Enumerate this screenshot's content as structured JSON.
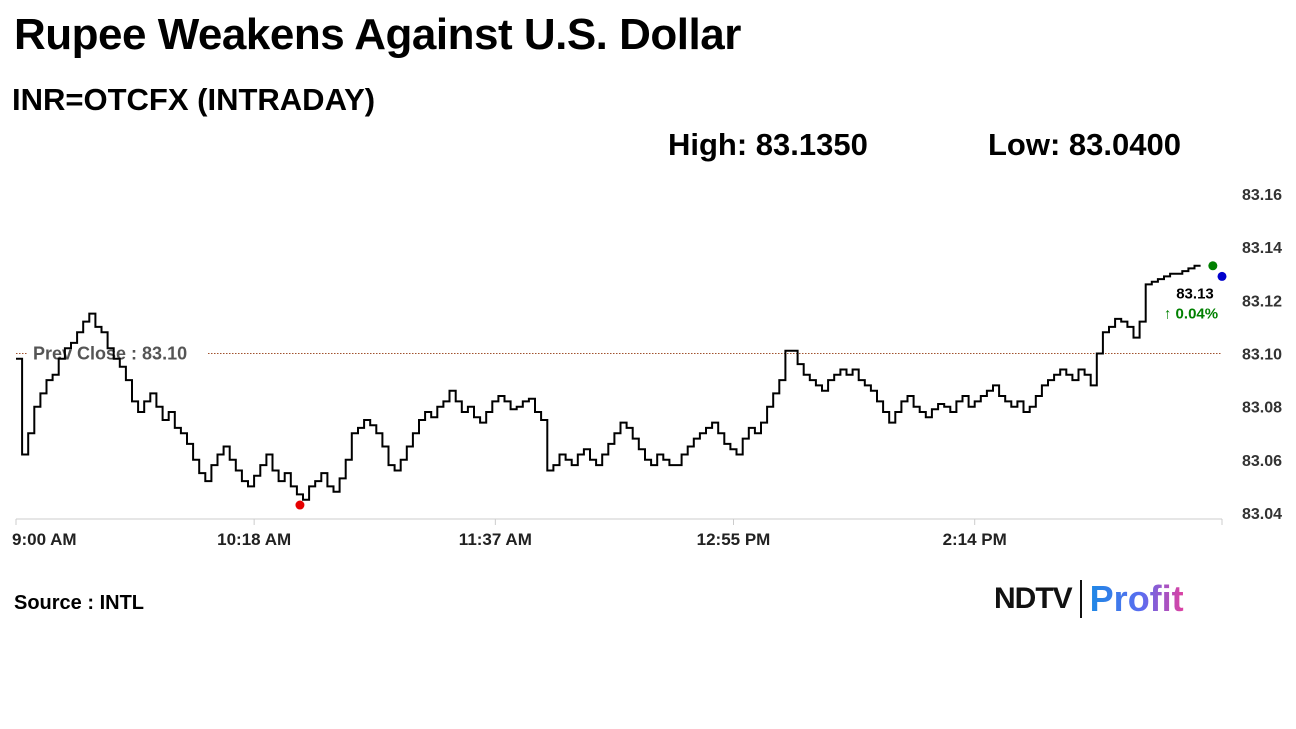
{
  "header": {
    "title": "Rupee Weakens Against U.S. Dollar",
    "subtitle": "INR=OTCFX (INTRADAY)",
    "high": "High: 83.1350",
    "low": "Low: 83.0400"
  },
  "footer": {
    "source": "Source : INTL",
    "logo_left": "NDTV",
    "logo_right": "Profit"
  },
  "colors": {
    "line": "#000000",
    "axis": "#cccccc",
    "prev_close_line": "#a0522d",
    "low_marker": "#e60000",
    "high_marker": "#008000",
    "last_marker": "#0000cc",
    "change_positive": "#008000"
  },
  "chart_data": {
    "type": "line",
    "ylim": [
      83.04,
      83.16
    ],
    "yticks": [
      "83.16",
      "83.14",
      "83.12",
      "83.10",
      "83.08",
      "83.06",
      "83.04"
    ],
    "ytick_values": [
      83.16,
      83.14,
      83.12,
      83.1,
      83.08,
      83.06,
      83.04
    ],
    "x_tick_labels": [
      "9:00 AM",
      "10:18 AM",
      "11:37 AM",
      "12:55 PM",
      "2:14 PM"
    ],
    "x_tick_minutes": [
      0,
      78,
      157,
      235,
      314
    ],
    "x_range_minutes": [
      0,
      395
    ],
    "prev_close": {
      "label": "Prev Close : 83.10",
      "value": 83.1
    },
    "last": {
      "price": "83.13",
      "change": "↑ 0.04%"
    },
    "markers": {
      "low": {
        "minute": 93,
        "value": 83.043
      },
      "high": {
        "minute": 392,
        "value": 83.133
      },
      "last": {
        "minute": 395,
        "value": 83.129
      }
    },
    "series": [
      {
        "minutes": [
          0,
          2,
          4,
          6,
          8,
          10,
          12,
          14,
          16,
          18,
          20,
          22,
          24,
          26,
          28,
          30,
          32,
          34,
          36,
          38,
          40,
          42,
          44,
          46,
          48,
          50,
          52,
          54,
          56,
          58,
          60,
          62,
          64,
          66,
          68,
          70,
          72,
          74,
          76,
          78,
          80,
          82,
          84,
          86,
          88,
          90,
          92,
          94,
          96,
          98,
          100,
          102,
          104,
          106,
          108,
          110,
          112,
          114,
          116,
          118,
          120,
          122,
          124,
          126,
          128,
          130,
          132,
          134,
          136,
          138,
          140,
          142,
          144,
          146,
          148,
          150,
          152,
          154,
          156,
          158,
          160,
          162,
          164,
          166,
          168,
          170,
          172,
          174,
          176,
          178,
          180,
          182,
          184,
          186,
          188,
          190,
          192,
          194,
          196,
          198,
          200,
          202,
          204,
          206,
          208,
          210,
          212,
          214,
          216,
          218,
          220,
          222,
          224,
          226,
          228,
          230,
          232,
          234,
          236,
          238,
          240,
          242,
          244,
          246,
          248,
          250,
          252,
          254,
          256,
          258,
          260,
          262,
          264,
          266,
          268,
          270,
          272,
          274,
          276,
          278,
          280,
          282,
          284,
          286,
          288,
          290,
          292,
          294,
          296,
          298,
          300,
          302,
          304,
          306,
          308,
          310,
          312,
          314,
          316,
          318,
          320,
          322,
          324,
          326,
          328,
          330,
          332,
          334,
          336,
          338,
          340,
          342,
          344,
          346,
          348,
          350,
          352,
          354,
          356,
          358,
          360,
          362,
          364,
          366,
          368,
          370,
          372,
          374,
          376,
          378,
          380,
          382,
          384,
          386,
          388,
          390,
          392,
          394
        ],
        "values": [
          83.098,
          83.062,
          83.07,
          83.08,
          83.085,
          83.09,
          83.092,
          83.098,
          83.102,
          83.104,
          83.108,
          83.112,
          83.115,
          83.11,
          83.108,
          83.102,
          83.098,
          83.095,
          83.09,
          83.082,
          83.078,
          83.082,
          83.085,
          83.08,
          83.075,
          83.078,
          83.072,
          83.07,
          83.066,
          83.06,
          83.055,
          83.052,
          83.058,
          83.062,
          83.065,
          83.06,
          83.056,
          83.052,
          83.05,
          83.054,
          83.058,
          83.062,
          83.056,
          83.052,
          83.055,
          83.05,
          83.047,
          83.045,
          83.05,
          83.052,
          83.055,
          83.05,
          83.048,
          83.053,
          83.06,
          83.07,
          83.072,
          83.075,
          83.073,
          83.07,
          83.065,
          83.058,
          83.056,
          83.06,
          83.065,
          83.07,
          83.075,
          83.078,
          83.076,
          83.08,
          83.082,
          83.086,
          83.082,
          83.078,
          83.08,
          83.076,
          83.074,
          83.078,
          83.082,
          83.084,
          83.082,
          83.079,
          83.08,
          83.082,
          83.083,
          83.078,
          83.075,
          83.056,
          83.058,
          83.062,
          83.06,
          83.058,
          83.062,
          83.064,
          83.06,
          83.058,
          83.062,
          83.066,
          83.07,
          83.074,
          83.072,
          83.068,
          83.064,
          83.06,
          83.058,
          83.062,
          83.06,
          83.058,
          83.058,
          83.062,
          83.065,
          83.068,
          83.07,
          83.072,
          83.074,
          83.07,
          83.066,
          83.064,
          83.062,
          83.068,
          83.072,
          83.07,
          83.074,
          83.08,
          83.085,
          83.09,
          83.101,
          83.101,
          83.096,
          83.092,
          83.09,
          83.088,
          83.086,
          83.09,
          83.092,
          83.094,
          83.092,
          83.094,
          83.09,
          83.088,
          83.086,
          83.082,
          83.078,
          83.074,
          83.078,
          83.082,
          83.084,
          83.08,
          83.078,
          83.076,
          83.079,
          83.081,
          83.08,
          83.078,
          83.082,
          83.084,
          83.08,
          83.082,
          83.084,
          83.086,
          83.088,
          83.084,
          83.082,
          83.08,
          83.082,
          83.078,
          83.08,
          83.084,
          83.088,
          83.09,
          83.092,
          83.094,
          83.092,
          83.09,
          83.094,
          83.092,
          83.088,
          83.1,
          83.108,
          83.11,
          83.113,
          83.112,
          83.11,
          83.106,
          83.112,
          83.126,
          83.127,
          83.128,
          83.129,
          83.13,
          83.13,
          83.131,
          83.132,
          83.133
        ]
      }
    ]
  }
}
